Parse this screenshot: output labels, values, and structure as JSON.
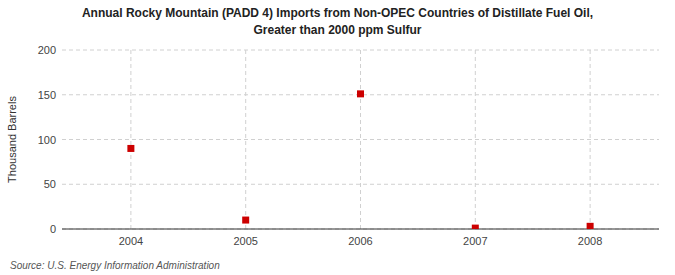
{
  "chart_data": {
    "type": "scatter",
    "title": "Annual Rocky Mountain (PADD 4) Imports from Non-OPEC Countries of Distillate Fuel Oil,",
    "subtitle": "Greater than 2000 ppm Sulfur",
    "y_label": "Thousand Barrels",
    "source": "Source: U.S. Energy Information Administration",
    "x": [
      2004,
      2005,
      2006,
      2007,
      2008
    ],
    "values": [
      90,
      10,
      151,
      1,
      3
    ],
    "color": "#cc0000",
    "marker": "square",
    "xlim": [
      2003.4,
      2008.6
    ],
    "xticks": [
      2004,
      2005,
      2006,
      2007,
      2008
    ],
    "ylim": [
      0,
      200
    ],
    "yticks": [
      0,
      50,
      100,
      150,
      200
    ],
    "grid": true
  }
}
